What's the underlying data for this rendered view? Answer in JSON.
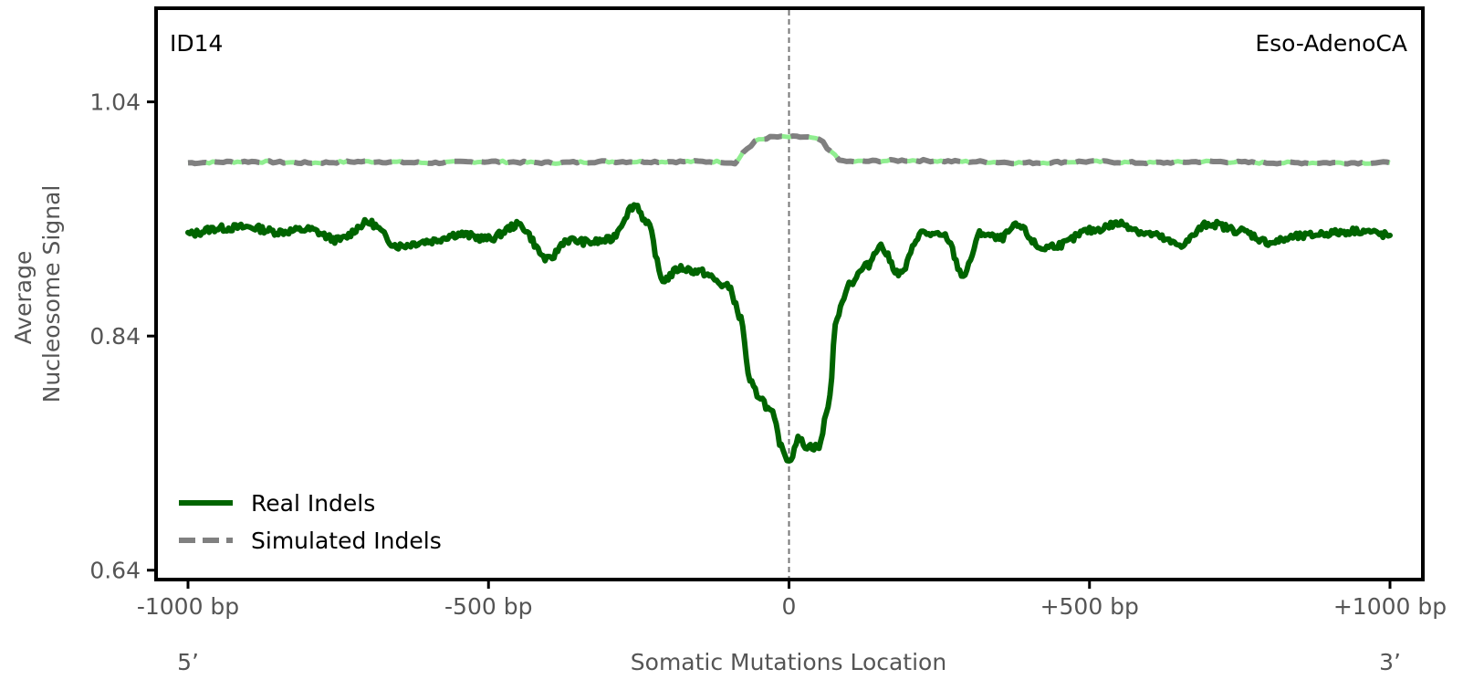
{
  "chart_data": {
    "type": "line",
    "signature": "ID14",
    "cancer_type": "Eso-AdenoCA",
    "xlabel": "Somatic Mutations Location",
    "ylabel_lines": [
      "Average",
      "Nucleosome Signal"
    ],
    "end_labels": {
      "left": "5’",
      "right": "3’"
    },
    "xlim": [
      -1000,
      1000
    ],
    "ylim": [
      0.632,
      1.12
    ],
    "x_ticks": [
      {
        "value": -1000,
        "label": "-1000 bp"
      },
      {
        "value": -500,
        "label": "-500 bp"
      },
      {
        "value": 0,
        "label": "0"
      },
      {
        "value": 500,
        "label": "+500 bp"
      },
      {
        "value": 1000,
        "label": "+1000 bp"
      }
    ],
    "y_ticks": [
      {
        "value": 1.04,
        "label": "1.04"
      },
      {
        "value": 0.84,
        "label": "0.84"
      },
      {
        "value": 0.64,
        "label": "0.64"
      }
    ],
    "vline_x": 0,
    "grid": false,
    "legend_position": "lower-left",
    "series": [
      {
        "name": "Real Indels",
        "color": "#006400",
        "style": "solid",
        "points": [
          [
            -1000,
            0.927
          ],
          [
            -950,
            0.932
          ],
          [
            -900,
            0.933
          ],
          [
            -850,
            0.929
          ],
          [
            -800,
            0.931
          ],
          [
            -750,
            0.922
          ],
          [
            -700,
            0.937
          ],
          [
            -650,
            0.917
          ],
          [
            -600,
            0.921
          ],
          [
            -550,
            0.927
          ],
          [
            -500,
            0.923
          ],
          [
            -450,
            0.935
          ],
          [
            -400,
            0.905
          ],
          [
            -370,
            0.922
          ],
          [
            -330,
            0.92
          ],
          [
            -300,
            0.922
          ],
          [
            -255,
            0.952
          ],
          [
            -235,
            0.935
          ],
          [
            -210,
            0.888
          ],
          [
            -180,
            0.898
          ],
          [
            -150,
            0.895
          ],
          [
            -100,
            0.882
          ],
          [
            -80,
            0.855
          ],
          [
            -65,
            0.8
          ],
          [
            -50,
            0.789
          ],
          [
            -30,
            0.775
          ],
          [
            -10,
            0.743
          ],
          [
            0,
            0.733
          ],
          [
            15,
            0.752
          ],
          [
            30,
            0.746
          ],
          [
            50,
            0.745
          ],
          [
            65,
            0.78
          ],
          [
            80,
            0.857
          ],
          [
            100,
            0.885
          ],
          [
            130,
            0.9
          ],
          [
            150,
            0.917
          ],
          [
            185,
            0.893
          ],
          [
            220,
            0.928
          ],
          [
            260,
            0.925
          ],
          [
            290,
            0.892
          ],
          [
            320,
            0.928
          ],
          [
            350,
            0.923
          ],
          [
            380,
            0.934
          ],
          [
            420,
            0.915
          ],
          [
            450,
            0.918
          ],
          [
            500,
            0.93
          ],
          [
            550,
            0.936
          ],
          [
            600,
            0.927
          ],
          [
            650,
            0.918
          ],
          [
            700,
            0.936
          ],
          [
            750,
            0.93
          ],
          [
            800,
            0.92
          ],
          [
            850,
            0.925
          ],
          [
            900,
            0.928
          ],
          [
            950,
            0.93
          ],
          [
            1000,
            0.926
          ]
        ]
      },
      {
        "name": "Simulated Indels",
        "color": "#808080",
        "overlay_color": "#90ee90",
        "style": "dashed",
        "points": [
          [
            -1000,
            0.988
          ],
          [
            -900,
            0.989
          ],
          [
            -800,
            0.988
          ],
          [
            -700,
            0.989
          ],
          [
            -600,
            0.988
          ],
          [
            -500,
            0.989
          ],
          [
            -400,
            0.988
          ],
          [
            -300,
            0.989
          ],
          [
            -200,
            0.989
          ],
          [
            -120,
            0.989
          ],
          [
            -90,
            0.988
          ],
          [
            -70,
            1.0
          ],
          [
            -50,
            1.008
          ],
          [
            -25,
            1.01
          ],
          [
            0,
            1.01
          ],
          [
            25,
            1.01
          ],
          [
            50,
            1.008
          ],
          [
            70,
            0.997
          ],
          [
            90,
            0.989
          ],
          [
            200,
            0.99
          ],
          [
            300,
            0.989
          ],
          [
            400,
            0.988
          ],
          [
            500,
            0.989
          ],
          [
            600,
            0.988
          ],
          [
            700,
            0.989
          ],
          [
            800,
            0.988
          ],
          [
            900,
            0.988
          ],
          [
            1000,
            0.988
          ]
        ]
      }
    ]
  }
}
